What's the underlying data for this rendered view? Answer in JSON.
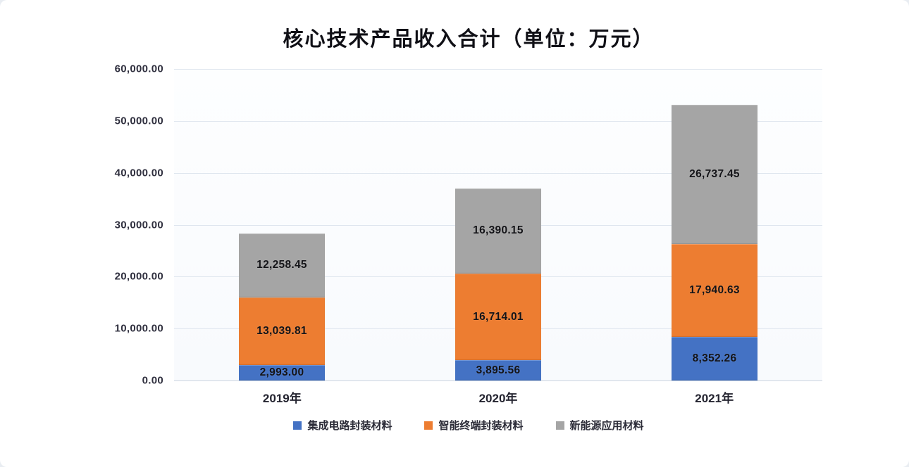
{
  "title": "核心技术产品收入合计（单位：万元）",
  "chart_data": {
    "type": "bar",
    "stacked": true,
    "title": "核心技术产品收入合计（单位：万元）",
    "categories": [
      "2019年",
      "2020年",
      "2021年"
    ],
    "series": [
      {
        "name": "集成电路封装材料",
        "color": "#4472C4",
        "values": [
          2993.0,
          3895.56,
          8352.26
        ],
        "labels": [
          "2,993.00",
          "3,895.56",
          "8,352.26"
        ]
      },
      {
        "name": "智能终端封装材料",
        "color": "#ED7D31",
        "values": [
          13039.81,
          16714.01,
          17940.63
        ],
        "labels": [
          "13,039.81",
          "16,714.01",
          "17,940.63"
        ]
      },
      {
        "name": "新能源应用材料",
        "color": "#A5A5A5",
        "values": [
          12258.45,
          16390.15,
          26737.45
        ],
        "labels": [
          "12,258.45",
          "16,390.15",
          "26,737.45"
        ]
      }
    ],
    "y_ticks": [
      "60,000.00",
      "50,000.00",
      "40,000.00",
      "30,000.00",
      "20,000.00",
      "10,000.00",
      "0.00"
    ],
    "ylim": [
      0,
      60000
    ],
    "grid": true,
    "legend_position": "bottom"
  }
}
